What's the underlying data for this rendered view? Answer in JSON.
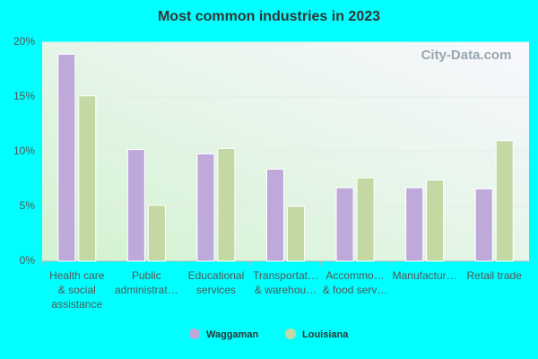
{
  "chart_data": {
    "type": "bar",
    "title": "Most common industries in 2023",
    "watermark": "City-Data.com",
    "categories": [
      [
        "Health care",
        "& social",
        "assistance"
      ],
      [
        "Public",
        "administrat…"
      ],
      [
        "Educational",
        "services"
      ],
      [
        "Transportat…",
        "& warehou…"
      ],
      [
        "Accommo…",
        "& food serv…"
      ],
      [
        "Manufactur…"
      ],
      [
        "Retail trade"
      ]
    ],
    "series": [
      {
        "name": "Waggaman",
        "color": "#bfa8da",
        "values": [
          18.9,
          10.2,
          9.8,
          8.4,
          6.7,
          6.7,
          6.6
        ]
      },
      {
        "name": "Louisiana",
        "color": "#c3d8a3",
        "values": [
          15.1,
          5.1,
          10.3,
          5.0,
          7.6,
          7.4,
          11.0
        ]
      }
    ],
    "ylim": [
      0,
      20
    ],
    "yticks": [
      {
        "value": 0,
        "label": "0%"
      },
      {
        "value": 5,
        "label": "5%"
      },
      {
        "value": 10,
        "label": "10%"
      },
      {
        "value": 15,
        "label": "15%"
      },
      {
        "value": 20,
        "label": "20%"
      }
    ],
    "grid": true
  }
}
